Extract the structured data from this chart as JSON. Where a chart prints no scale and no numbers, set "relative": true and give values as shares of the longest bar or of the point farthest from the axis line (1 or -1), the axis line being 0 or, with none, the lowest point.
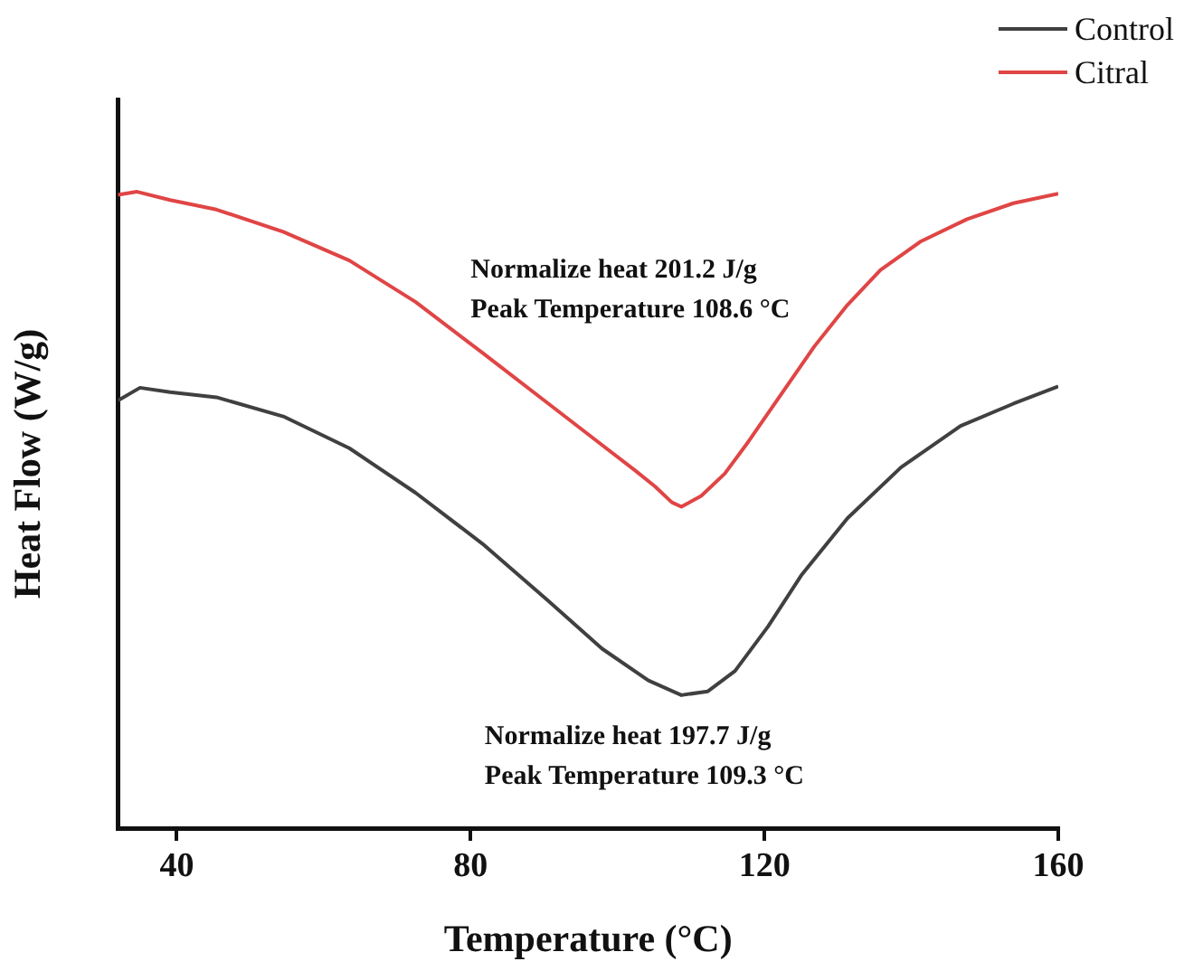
{
  "chart_data": {
    "type": "line",
    "relative": true,
    "xlabel": "Temperature (°C)",
    "ylabel": "Heat Flow (W/g)",
    "xlim": [
      32,
      160
    ],
    "xticks": [
      40,
      80,
      120,
      160
    ],
    "grid": false,
    "legend": "top right",
    "marker": "none",
    "line_style": "solid",
    "series": [
      {
        "name": "Control",
        "color": "#404040",
        "x": [
          32.0,
          35.0,
          39.1,
          45.4,
          54.5,
          63.5,
          72.5,
          81.6,
          90.6,
          97.9,
          104.2,
          108.7,
          112.3,
          116.0,
          120.5,
          125.0,
          131.3,
          138.6,
          146.7,
          153.9,
          160.0
        ],
        "values": [
          0.672,
          0.692,
          0.685,
          0.677,
          0.647,
          0.597,
          0.527,
          0.447,
          0.357,
          0.282,
          0.232,
          0.209,
          0.215,
          0.247,
          0.317,
          0.397,
          0.487,
          0.567,
          0.632,
          0.667,
          0.694
        ]
      },
      {
        "name": "Citral",
        "color": "#e04545",
        "x": [
          32.0,
          34.6,
          39.1,
          45.4,
          54.5,
          63.5,
          72.5,
          81.6,
          90.6,
          97.9,
          102.4,
          105.1,
          107.4,
          108.7,
          111.4,
          114.6,
          117.8,
          122.3,
          126.8,
          131.3,
          135.8,
          141.3,
          147.6,
          153.9,
          160.0
        ],
        "values": [
          0.995,
          1.0,
          0.987,
          0.972,
          0.937,
          0.892,
          0.827,
          0.747,
          0.667,
          0.602,
          0.562,
          0.537,
          0.512,
          0.505,
          0.522,
          0.557,
          0.607,
          0.682,
          0.757,
          0.822,
          0.877,
          0.922,
          0.957,
          0.982,
          0.997
        ]
      }
    ],
    "annotations": [
      "Normalize heat 201.2 J/g\nPeak Temperature 108.6 °C",
      "Normalize heat 197.7 J/g\nPeak Temperature 109.3 °C"
    ]
  }
}
